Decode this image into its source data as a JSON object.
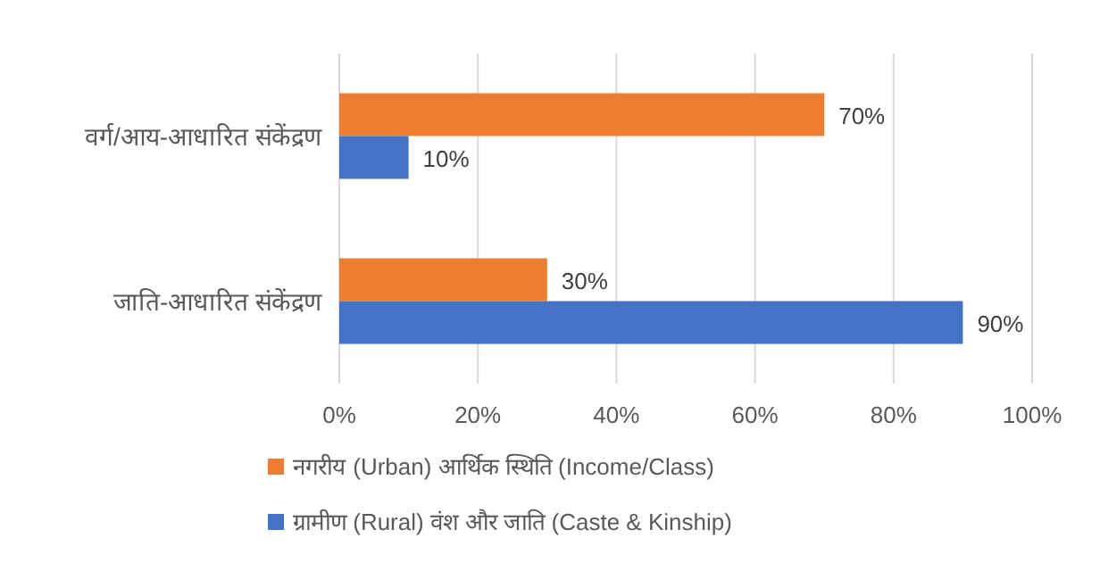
{
  "chart_data": {
    "type": "bar",
    "orientation": "horizontal",
    "categories": [
      "वर्ग/आय-आधारित संकेंद्रण",
      "जाति-आधारित संकेंद्रण"
    ],
    "series": [
      {
        "name": "नगरीय (Urban) आर्थिक स्थिति (Income/Class)",
        "color": "#ed7d31",
        "values": [
          70,
          30
        ],
        "value_labels": [
          "70%",
          "30%"
        ]
      },
      {
        "name": "ग्रामीण (Rural) वंश और जाति (Caste & Kinship)",
        "color": "#4472c4",
        "values": [
          10,
          90
        ],
        "value_labels": [
          "10%",
          "90%"
        ]
      }
    ],
    "xlim": [
      0,
      100
    ],
    "xticks": [
      {
        "value": 0,
        "label": "0%"
      },
      {
        "value": 20,
        "label": "20%"
      },
      {
        "value": 40,
        "label": "40%"
      },
      {
        "value": 60,
        "label": "60%"
      },
      {
        "value": 80,
        "label": "80%"
      },
      {
        "value": 100,
        "label": "100%"
      }
    ],
    "grid": "x",
    "legend": "bottom"
  }
}
